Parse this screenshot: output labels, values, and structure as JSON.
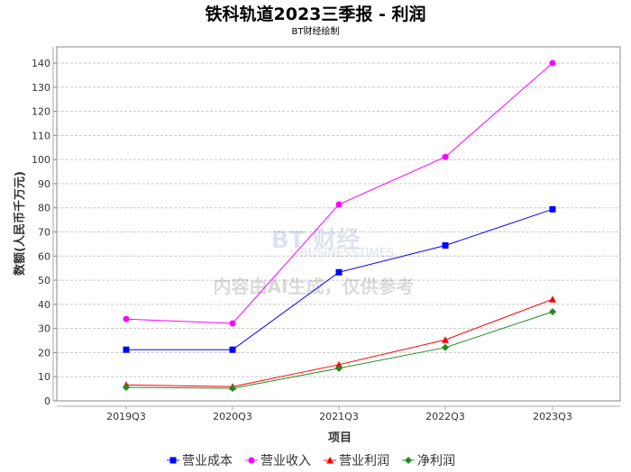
{
  "chart_data": {
    "type": "line",
    "title": "铁科轨道2023三季报 - 利润",
    "subtitle": "BT财经绘制",
    "xlabel": "项目",
    "ylabel": "数额(人民币千万元)",
    "ylim": [
      0,
      145
    ],
    "yticks": [
      0,
      10,
      20,
      30,
      40,
      50,
      60,
      70,
      80,
      90,
      100,
      110,
      120,
      130,
      140
    ],
    "categories": [
      "2019Q3",
      "2020Q3",
      "2021Q3",
      "2022Q3",
      "2023Q3"
    ],
    "grid": true,
    "legend_position": "bottom",
    "watermark": "BT财经 BUSINESSTIMES 内容由AI生成，仅供参考",
    "series": [
      {
        "name": "营业成本",
        "color": "#0000ff",
        "marker": "square",
        "values": [
          21.2,
          21.2,
          53.3,
          64.4,
          79.4
        ]
      },
      {
        "name": "营业收入",
        "color": "#ff00ff",
        "marker": "circle",
        "values": [
          33.9,
          32.1,
          81.4,
          101.1,
          140.0
        ]
      },
      {
        "name": "营业利润",
        "color": "#ff0000",
        "marker": "triangle",
        "values": [
          6.6,
          5.9,
          15.0,
          25.3,
          42.1
        ]
      },
      {
        "name": "净利润",
        "color": "#228b22",
        "marker": "diamond",
        "values": [
          5.6,
          5.2,
          13.5,
          22.1,
          36.9
        ]
      }
    ]
  }
}
